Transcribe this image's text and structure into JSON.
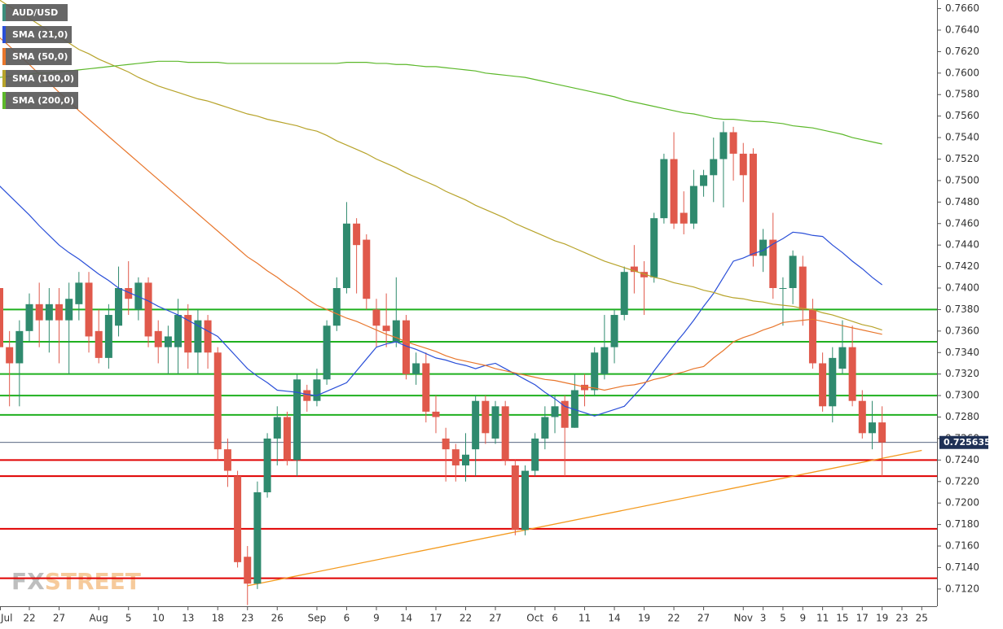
{
  "chart_data": {
    "type": "candlestick",
    "categories": [
      "Jul",
      null,
      null,
      "22",
      null,
      null,
      "27",
      null,
      null,
      null,
      "Aug",
      null,
      null,
      "5",
      null,
      null,
      "10",
      null,
      null,
      "13",
      null,
      null,
      "18",
      null,
      null,
      "23",
      null,
      null,
      "26",
      null,
      null,
      null,
      "Sep",
      null,
      null,
      "6",
      null,
      null,
      "9",
      null,
      null,
      "14",
      null,
      null,
      "17",
      null,
      null,
      "22",
      null,
      null,
      "27",
      null,
      null,
      null,
      "Oct",
      null,
      "6",
      null,
      null,
      "11",
      null,
      null,
      "14",
      null,
      null,
      "19",
      null,
      null,
      "22",
      null,
      null,
      "27",
      null,
      null,
      null,
      "Nov",
      null,
      "3",
      null,
      "5",
      null,
      "9",
      null,
      "11",
      null,
      "15",
      null,
      "17",
      null,
      "19",
      null,
      "23",
      null,
      "25"
    ],
    "series": [
      {
        "name": "AUD/USD",
        "color": "#3b8e7c",
        "up_color": "#2f8a6e",
        "down_color": "#e0594b",
        "open": [
          0.74,
          0.7345,
          0.733,
          0.736,
          0.7385,
          0.737,
          0.7385,
          0.737,
          0.7385,
          0.7405,
          0.736,
          0.7335,
          0.7365,
          0.74,
          0.738,
          0.7405,
          0.736,
          0.7345,
          0.7345,
          0.7375,
          0.734,
          0.737,
          0.734,
          0.725,
          0.7225,
          0.715,
          0.7125,
          0.721,
          0.726,
          0.728,
          0.724,
          0.7305,
          0.7295,
          0.7315,
          0.7365,
          0.74,
          0.746,
          0.7445,
          0.738,
          0.7365,
          0.735,
          0.737,
          0.732,
          0.733,
          0.7285,
          0.726,
          0.725,
          0.7235,
          0.725,
          0.7295,
          0.726,
          0.729,
          0.7235,
          0.7175,
          0.723,
          0.726,
          0.728,
          0.7295,
          0.727,
          0.731,
          0.7305,
          0.732,
          0.7345,
          0.7375,
          0.742,
          0.7415,
          0.741,
          0.7465,
          0.752,
          0.747,
          0.746,
          0.7495,
          0.7505,
          0.752,
          0.7545,
          0.7525,
          0.7525,
          0.743,
          0.7445,
          0.74,
          0.74,
          0.742,
          0.738,
          0.733,
          0.729,
          0.7325,
          0.7345,
          0.7295,
          0.7265,
          0.7275,
          null,
          null,
          null,
          null
        ],
        "high": [
          0.742,
          0.736,
          0.737,
          0.7395,
          0.7405,
          0.74,
          0.74,
          0.7405,
          0.7415,
          0.7415,
          0.738,
          0.7385,
          0.742,
          0.7425,
          0.741,
          0.741,
          0.737,
          0.7365,
          0.739,
          0.7385,
          0.738,
          0.7375,
          0.7345,
          0.726,
          0.723,
          0.716,
          0.722,
          0.7265,
          0.729,
          0.7285,
          0.732,
          0.731,
          0.7325,
          0.737,
          0.741,
          0.748,
          0.7465,
          0.745,
          0.739,
          0.7395,
          0.741,
          0.7375,
          0.734,
          0.734,
          0.73,
          0.727,
          0.7255,
          0.7265,
          0.73,
          0.73,
          0.7295,
          0.7295,
          0.724,
          0.7235,
          0.7265,
          0.729,
          0.73,
          0.73,
          0.732,
          0.732,
          0.7345,
          0.7375,
          0.738,
          0.742,
          0.744,
          0.7425,
          0.747,
          0.7525,
          0.7545,
          0.749,
          0.751,
          0.751,
          0.754,
          0.7555,
          0.755,
          0.7535,
          0.753,
          0.7455,
          0.747,
          0.741,
          0.7435,
          0.743,
          0.739,
          0.734,
          0.7345,
          0.737,
          0.7365,
          0.7305,
          0.7295,
          0.729,
          null,
          null,
          null,
          null
        ],
        "low": [
          0.733,
          0.729,
          0.729,
          0.735,
          0.7345,
          0.734,
          0.733,
          0.732,
          0.737,
          0.734,
          0.733,
          0.7325,
          0.7355,
          0.7375,
          0.737,
          0.7345,
          0.733,
          0.732,
          0.732,
          0.7325,
          0.732,
          0.7325,
          0.724,
          0.7215,
          0.714,
          0.7105,
          0.712,
          0.7205,
          0.7235,
          0.7235,
          0.7225,
          0.7285,
          0.729,
          0.731,
          0.736,
          0.7395,
          0.7395,
          0.738,
          0.7345,
          0.7345,
          0.7345,
          0.7315,
          0.731,
          0.7275,
          0.7265,
          0.722,
          0.722,
          0.722,
          0.7225,
          0.7255,
          0.7255,
          0.7235,
          0.717,
          0.717,
          0.7225,
          0.725,
          0.7265,
          0.7225,
          0.727,
          0.729,
          0.73,
          0.7315,
          0.733,
          0.737,
          0.7395,
          0.7375,
          0.7405,
          0.746,
          0.7455,
          0.745,
          0.7455,
          0.7485,
          0.748,
          0.7475,
          0.75,
          0.748,
          0.742,
          0.7415,
          0.739,
          0.7365,
          0.7385,
          0.7365,
          0.7325,
          0.7285,
          0.7275,
          0.732,
          0.729,
          0.726,
          0.725,
          0.7225,
          null,
          null,
          null,
          null
        ],
        "close": [
          0.7345,
          0.733,
          0.736,
          0.7385,
          0.737,
          0.7385,
          0.737,
          0.739,
          0.7405,
          0.7355,
          0.7335,
          0.7375,
          0.74,
          0.739,
          0.7405,
          0.7355,
          0.7345,
          0.7355,
          0.7375,
          0.734,
          0.737,
          0.734,
          0.725,
          0.723,
          0.7145,
          0.7125,
          0.721,
          0.726,
          0.728,
          0.724,
          0.7315,
          0.7295,
          0.7315,
          0.7365,
          0.74,
          0.746,
          0.744,
          0.739,
          0.7365,
          0.736,
          0.737,
          0.732,
          0.733,
          0.7285,
          0.728,
          0.725,
          0.7235,
          0.7245,
          0.7295,
          0.7265,
          0.729,
          0.724,
          0.7175,
          0.723,
          0.726,
          0.728,
          0.729,
          0.727,
          0.7305,
          0.7305,
          0.734,
          0.7345,
          0.7375,
          0.7415,
          0.7415,
          0.741,
          0.7465,
          0.752,
          0.746,
          0.746,
          0.7495,
          0.7505,
          0.752,
          0.7545,
          0.7525,
          0.7505,
          0.743,
          0.7445,
          0.74,
          0.74,
          0.743,
          0.738,
          0.733,
          0.729,
          0.7335,
          0.7345,
          0.7295,
          0.7265,
          0.7275,
          0.725635,
          null,
          null,
          null,
          null
        ]
      },
      {
        "name": "SMA (21,0)",
        "color": "#2a4fd8",
        "values": [
          0.7495,
          0.7486,
          0.7477,
          0.7468,
          0.7458,
          0.7449,
          0.744,
          0.7433,
          0.7427,
          0.742,
          0.7413,
          0.7407,
          0.74,
          0.7396,
          0.7392,
          0.7388,
          0.7383,
          0.7379,
          0.7375,
          0.737,
          0.7365,
          0.736,
          0.7355,
          0.7345,
          0.7335,
          0.7325,
          0.7318,
          0.7312,
          0.7305,
          0.7304,
          0.7303,
          0.7301,
          0.73,
          0.7304,
          0.7308,
          0.7312,
          0.7323,
          0.7334,
          0.7345,
          0.7348,
          0.735,
          0.7346,
          0.7343,
          0.7339,
          0.7335,
          0.7333,
          0.733,
          0.7328,
          0.7325,
          0.7328,
          0.733,
          0.7325,
          0.732,
          0.7315,
          0.731,
          0.7303,
          0.7297,
          0.729,
          0.7287,
          0.7284,
          0.7281,
          0.7284,
          0.7287,
          0.729,
          0.73,
          0.731,
          0.7323,
          0.7335,
          0.7347,
          0.7358,
          0.737,
          0.7383,
          0.7395,
          0.741,
          0.7425,
          0.7428,
          0.7432,
          0.7435,
          0.7441,
          0.7446,
          0.7452,
          0.7451,
          0.7449,
          0.7448,
          0.744,
          0.7433,
          0.7425,
          0.7418,
          0.741,
          0.7403,
          null,
          null,
          null,
          null
        ]
      },
      {
        "name": "SMA (50,0)",
        "color": "#e8762c",
        "values": [
          0.7633,
          0.7625,
          0.7616,
          0.7608,
          0.7599,
          0.7591,
          0.7582,
          0.7574,
          0.7565,
          0.7557,
          0.7549,
          0.7541,
          0.7533,
          0.7525,
          0.7517,
          0.7509,
          0.7501,
          0.7493,
          0.7485,
          0.7477,
          0.7469,
          0.7461,
          0.7453,
          0.7445,
          0.7437,
          0.7429,
          0.7423,
          0.7416,
          0.741,
          0.7403,
          0.7397,
          0.739,
          0.7384,
          0.738,
          0.7376,
          0.7372,
          0.7369,
          0.7365,
          0.7361,
          0.7357,
          0.7354,
          0.735,
          0.7347,
          0.7344,
          0.7341,
          0.7337,
          0.7334,
          0.7332,
          0.733,
          0.7328,
          0.7325,
          0.7323,
          0.7321,
          0.7319,
          0.7317,
          0.7315,
          0.7314,
          0.7312,
          0.731,
          0.7308,
          0.7307,
          0.7305,
          0.7307,
          0.7309,
          0.731,
          0.7312,
          0.7315,
          0.7317,
          0.732,
          0.7322,
          0.7325,
          0.7327,
          0.7335,
          0.7342,
          0.735,
          0.7354,
          0.7357,
          0.7361,
          0.7364,
          0.7368,
          0.7369,
          0.737,
          0.7371,
          0.7369,
          0.7367,
          0.7365,
          0.7363,
          0.7361,
          0.7359,
          0.7357,
          null,
          null,
          null,
          null
        ]
      },
      {
        "name": "SMA (100,0)",
        "color": "#b7a32a",
        "values": [
          0.7668,
          0.7662,
          0.7657,
          0.7651,
          0.7645,
          0.7639,
          0.7634,
          0.7628,
          0.7622,
          0.7618,
          0.7613,
          0.7609,
          0.7605,
          0.7601,
          0.7596,
          0.7592,
          0.7588,
          0.7585,
          0.7582,
          0.7579,
          0.7576,
          0.7574,
          0.7571,
          0.7568,
          0.7565,
          0.7562,
          0.756,
          0.7557,
          0.7555,
          0.7553,
          0.7551,
          0.7548,
          0.7546,
          0.7542,
          0.7537,
          0.7533,
          0.7529,
          0.7525,
          0.752,
          0.7516,
          0.7512,
          0.7507,
          0.7503,
          0.7499,
          0.7495,
          0.749,
          0.7486,
          0.7482,
          0.7477,
          0.7473,
          0.7469,
          0.7465,
          0.746,
          0.7456,
          0.7452,
          0.7448,
          0.7444,
          0.7441,
          0.7437,
          0.7433,
          0.7429,
          0.7425,
          0.7422,
          0.7419,
          0.7416,
          0.7413,
          0.741,
          0.7408,
          0.7405,
          0.7403,
          0.7401,
          0.7398,
          0.7396,
          0.7393,
          0.7391,
          0.739,
          0.7388,
          0.7387,
          0.7385,
          0.7384,
          0.7383,
          0.7381,
          0.738,
          0.7377,
          0.7375,
          0.7372,
          0.7369,
          0.7366,
          0.7364,
          0.7361,
          null,
          null,
          null,
          null
        ]
      },
      {
        "name": "SMA (200,0)",
        "color": "#5cb82a",
        "values": [
          0.7596,
          0.7597,
          0.7598,
          0.7599,
          0.76,
          0.76,
          0.7601,
          0.7602,
          0.7603,
          0.7604,
          0.7605,
          0.7606,
          0.7607,
          0.7608,
          0.7609,
          0.761,
          0.7611,
          0.7611,
          0.7611,
          0.761,
          0.761,
          0.761,
          0.761,
          0.7609,
          0.7609,
          0.7609,
          0.7609,
          0.7609,
          0.7609,
          0.7609,
          0.7609,
          0.7609,
          0.7609,
          0.7609,
          0.7609,
          0.761,
          0.761,
          0.761,
          0.7609,
          0.7609,
          0.7608,
          0.7608,
          0.7607,
          0.7606,
          0.7606,
          0.7605,
          0.7604,
          0.7603,
          0.7602,
          0.76,
          0.7599,
          0.7598,
          0.7597,
          0.7596,
          0.7594,
          0.7592,
          0.759,
          0.7588,
          0.7586,
          0.7584,
          0.7582,
          0.758,
          0.7578,
          0.7575,
          0.7573,
          0.7571,
          0.7569,
          0.7567,
          0.7565,
          0.7563,
          0.7562,
          0.756,
          0.7558,
          0.7557,
          0.7557,
          0.7556,
          0.7555,
          0.7555,
          0.7554,
          0.7553,
          0.7551,
          0.755,
          0.7549,
          0.7547,
          0.7545,
          0.7543,
          0.754,
          0.7538,
          0.7536,
          0.7534,
          null,
          null,
          null,
          null
        ]
      }
    ],
    "levels": [
      {
        "color": "#1fb01f",
        "values": [
          0.738,
          0.735,
          0.732,
          0.73,
          0.7282
        ]
      },
      {
        "color": "#e00000",
        "values": [
          0.724,
          0.7225,
          0.7176,
          0.713
        ]
      }
    ],
    "trendline": {
      "color": "#f39a1e",
      "x": [
        25,
        93
      ],
      "values": [
        0.7123,
        0.7249
      ]
    },
    "last_price": 0.725635,
    "last_price_color": "#1f3156",
    "watermark": [
      "FX",
      "STREET"
    ],
    "ylim": [
      0.7104,
      0.7668
    ],
    "yticks": [
      {
        "value": 0.766,
        "label": "0.7660"
      },
      {
        "value": 0.764,
        "label": "0.7640"
      },
      {
        "value": 0.762,
        "label": "0.7620"
      },
      {
        "value": 0.76,
        "label": "0.7600"
      },
      {
        "value": 0.758,
        "label": "0.7580"
      },
      {
        "value": 0.756,
        "label": "0.7560"
      },
      {
        "value": 0.754,
        "label": "0.7540"
      },
      {
        "value": 0.752,
        "label": "0.7520"
      },
      {
        "value": 0.75,
        "label": "0.7500"
      },
      {
        "value": 0.748,
        "label": "0.7480"
      },
      {
        "value": 0.746,
        "label": "0.7460"
      },
      {
        "value": 0.744,
        "label": "0.7440"
      },
      {
        "value": 0.742,
        "label": "0.7420"
      },
      {
        "value": 0.74,
        "label": "0.7400"
      },
      {
        "value": 0.738,
        "label": "0.7380"
      },
      {
        "value": 0.736,
        "label": "0.7360"
      },
      {
        "value": 0.734,
        "label": "0.7340"
      },
      {
        "value": 0.732,
        "label": "0.7320"
      },
      {
        "value": 0.73,
        "label": "0.7300"
      },
      {
        "value": 0.728,
        "label": "0.7280"
      },
      {
        "value": 0.726,
        "label": "0.7260"
      },
      {
        "value": 0.724,
        "label": "0.7240"
      },
      {
        "value": 0.722,
        "label": "0.7220"
      },
      {
        "value": 0.72,
        "label": "0.7200"
      },
      {
        "value": 0.718,
        "label": "0.7180"
      },
      {
        "value": 0.716,
        "label": "0.7160"
      },
      {
        "value": 0.714,
        "label": "0.7140"
      },
      {
        "value": 0.712,
        "label": "0.7120"
      }
    ]
  }
}
